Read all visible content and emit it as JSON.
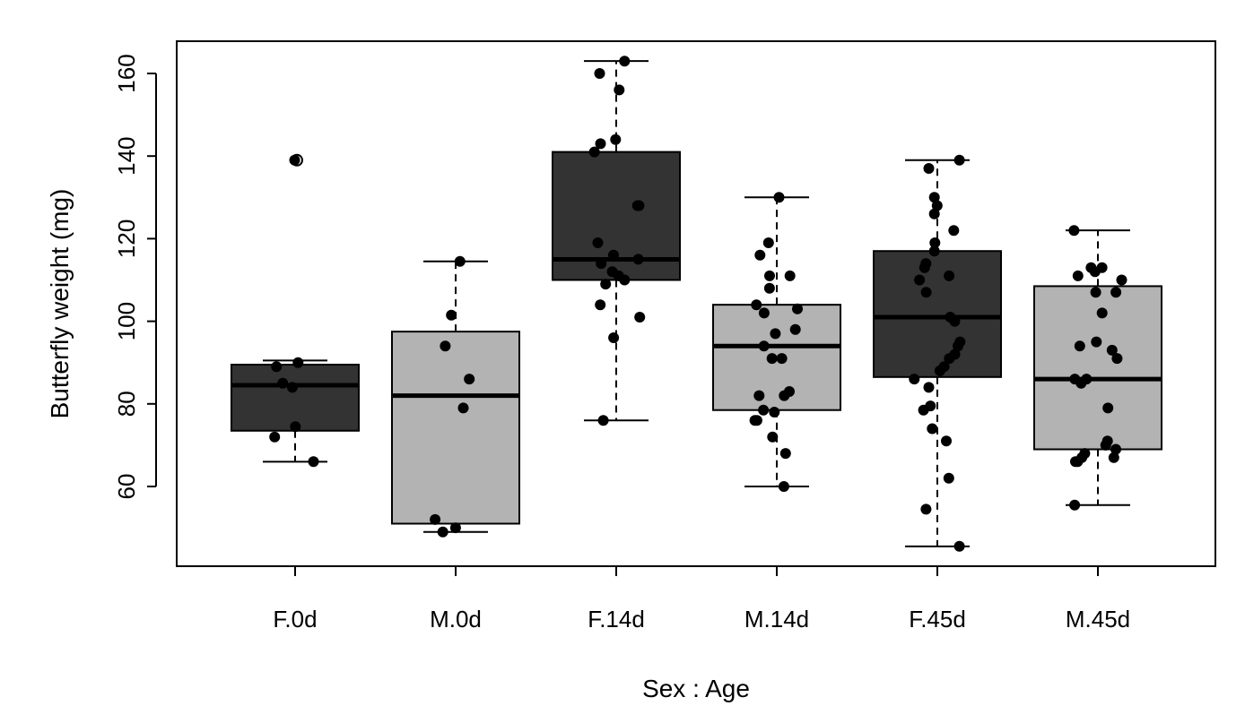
{
  "chart_data": {
    "type": "box",
    "title": "",
    "xlabel": "Sex : Age",
    "ylabel": "Butterfly weight (mg)",
    "ylim": [
      40,
      167
    ],
    "y_ticks": [
      60,
      80,
      100,
      120,
      140,
      160
    ],
    "grid": false,
    "categories": [
      "F.0d",
      "M.0d",
      "F.14d",
      "M.14d",
      "F.45d",
      "M.45d"
    ],
    "colors": {
      "F": "#333333",
      "M": "#b3b3b3"
    },
    "boxes": [
      {
        "category": "F.0d",
        "group": "F",
        "whisker_low": 66,
        "q1": 73.5,
        "median": 84.5,
        "q3": 89.5,
        "whisker_high": 90.5,
        "outliers": [
          139
        ]
      },
      {
        "category": "M.0d",
        "group": "M",
        "whisker_low": 49,
        "q1": 51,
        "median": 82,
        "q3": 97.5,
        "whisker_high": 114.5,
        "outliers": []
      },
      {
        "category": "F.14d",
        "group": "F",
        "whisker_low": 76,
        "q1": 110,
        "median": 115,
        "q3": 141,
        "whisker_high": 163,
        "outliers": []
      },
      {
        "category": "M.14d",
        "group": "M",
        "whisker_low": 60,
        "q1": 78.5,
        "median": 94,
        "q3": 104,
        "whisker_high": 130,
        "outliers": []
      },
      {
        "category": "F.45d",
        "group": "F",
        "whisker_low": 45.5,
        "q1": 86.5,
        "median": 101,
        "q3": 117,
        "whisker_high": 139,
        "outliers": []
      },
      {
        "category": "M.45d",
        "group": "M",
        "whisker_low": 55.5,
        "q1": 69,
        "median": 86,
        "q3": 108.5,
        "whisker_high": 122,
        "outliers": []
      }
    ],
    "points": [
      {
        "category": "F.0d",
        "values": [
          139,
          90,
          89,
          85,
          84,
          74.5,
          72,
          66
        ]
      },
      {
        "category": "M.0d",
        "values": [
          114.5,
          101.5,
          94,
          86,
          79,
          52,
          50,
          49
        ]
      },
      {
        "category": "F.14d",
        "values": [
          163,
          160,
          156,
          144,
          143,
          141,
          128,
          128,
          119,
          116,
          115,
          114,
          112,
          111,
          110,
          109,
          104,
          101,
          96,
          76
        ]
      },
      {
        "category": "M.14d",
        "values": [
          130,
          119,
          116,
          111,
          111,
          108,
          104,
          103,
          102,
          98,
          97,
          94,
          91,
          91,
          83,
          82,
          82,
          78.5,
          78,
          76,
          76,
          72,
          68,
          60
        ]
      },
      {
        "category": "F.45d",
        "values": [
          139,
          137,
          130,
          128,
          126,
          122,
          119,
          117,
          114,
          113,
          111,
          110,
          107,
          101,
          100,
          95,
          94,
          92,
          91,
          89,
          88,
          86,
          84,
          79.5,
          78.5,
          74,
          71,
          62,
          54.5,
          45.5
        ]
      },
      {
        "category": "M.45d",
        "values": [
          122,
          113,
          113,
          112,
          111,
          110,
          107,
          107,
          102,
          95,
          94,
          93,
          91,
          86,
          86,
          85,
          79,
          71,
          70,
          69,
          68,
          67,
          67,
          66,
          66,
          55.5
        ]
      }
    ]
  }
}
